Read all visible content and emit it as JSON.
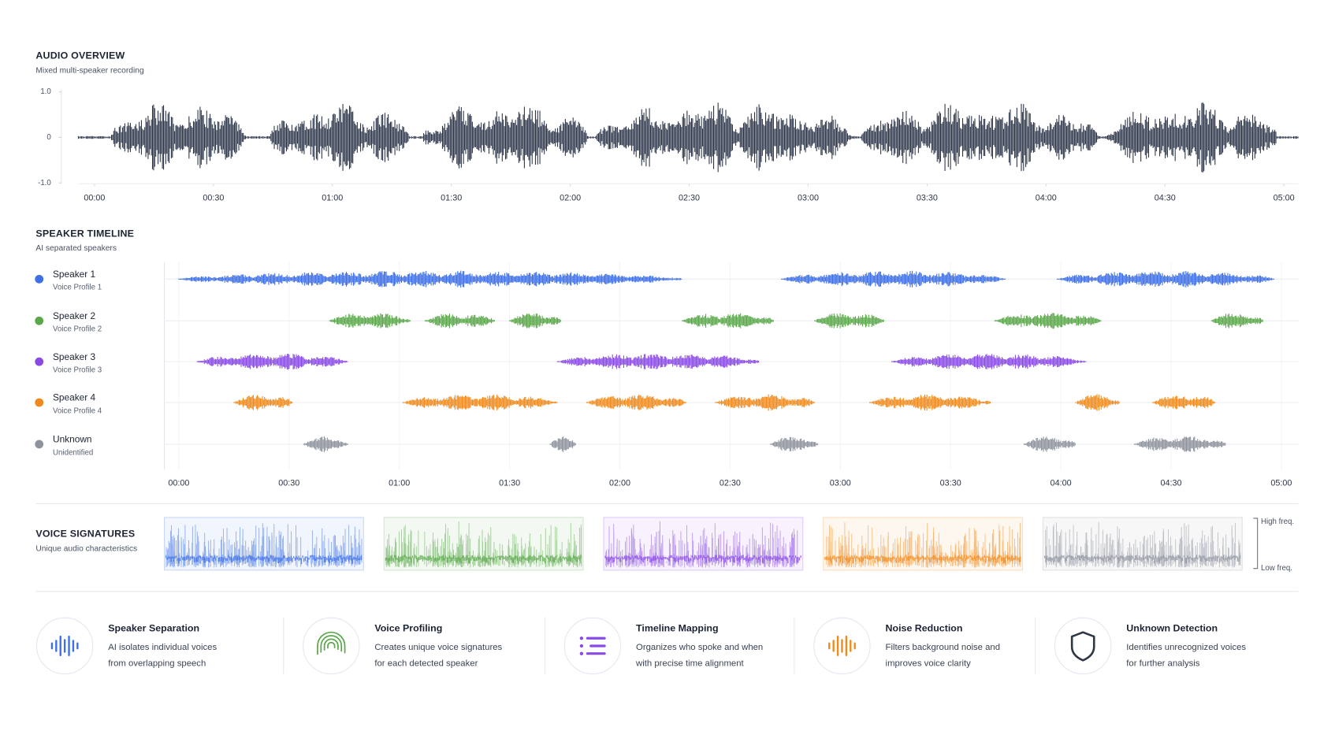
{
  "overview": {
    "title": "AUDIO OVERVIEW",
    "subtitle": "Mixed multi-speaker recording",
    "color": "#2b3448",
    "ylim": [
      -1,
      1
    ],
    "yticks": [
      {
        "value": 1,
        "label": "1.0"
      },
      0,
      {
        "value": -1,
        "label": "-1.0"
      }
    ],
    "xlim": [
      0,
      300
    ],
    "xticks": [
      {
        "value": 0,
        "label": "00:00"
      },
      {
        "value": 30,
        "label": "00:30"
      },
      {
        "value": 60,
        "label": "01:00"
      },
      {
        "value": 90,
        "label": "01:30"
      },
      {
        "value": 120,
        "label": "02:00"
      },
      {
        "value": 150,
        "label": "02:30"
      },
      {
        "value": 180,
        "label": "03:00"
      },
      {
        "value": 210,
        "label": "03:30"
      },
      {
        "value": 240,
        "label": "04:00"
      },
      {
        "value": 270,
        "label": "04:30"
      },
      {
        "value": 300,
        "label": "05:00"
      }
    ]
  },
  "timeline": {
    "title": "SPEAKER TIMELINE",
    "subtitle": "AI separated speakers",
    "xlim": [
      0,
      300
    ],
    "xticks": [
      {
        "value": 0,
        "label": "00:00"
      },
      {
        "value": 30,
        "label": "00:30"
      },
      {
        "value": 60,
        "label": "01:00"
      },
      {
        "value": 90,
        "label": "01:30"
      },
      {
        "value": 120,
        "label": "02:00"
      },
      {
        "value": 150,
        "label": "02:30"
      },
      {
        "value": 180,
        "label": "03:00"
      },
      {
        "value": 210,
        "label": "03:30"
      },
      {
        "value": 240,
        "label": "04:00"
      },
      {
        "value": 270,
        "label": "04:30"
      },
      {
        "value": 300,
        "label": "05:00"
      }
    ],
    "speakers": [
      {
        "name": "Speaker 1",
        "profile": "Voice Profile 1",
        "color": "#3d6fe6",
        "segments": [
          [
            0,
            137
          ],
          [
            164,
            225
          ],
          [
            239,
            298
          ]
        ]
      },
      {
        "name": "Speaker 2",
        "profile": "Voice Profile 2",
        "color": "#5aa84a",
        "segments": [
          [
            41,
            63
          ],
          [
            67,
            86
          ],
          [
            90,
            104
          ],
          [
            137,
            162
          ],
          [
            173,
            192
          ],
          [
            222,
            251
          ],
          [
            281,
            295
          ]
        ]
      },
      {
        "name": "Speaker 3",
        "profile": "Voice Profile 3",
        "color": "#8a4ae6",
        "segments": [
          [
            5,
            46
          ],
          [
            103,
            158
          ],
          [
            194,
            247
          ]
        ]
      },
      {
        "name": "Speaker 4",
        "profile": "Voice Profile 4",
        "color": "#f08a1c",
        "segments": [
          [
            15,
            31
          ],
          [
            61,
            103
          ],
          [
            111,
            138
          ],
          [
            146,
            173
          ],
          [
            188,
            221
          ],
          [
            244,
            256
          ],
          [
            265,
            282
          ]
        ]
      },
      {
        "name": "Unknown",
        "profile": "Unidentified",
        "color": "#8e939d",
        "segments": [
          [
            34,
            46
          ],
          [
            101,
            108
          ],
          [
            161,
            174
          ],
          [
            230,
            244
          ],
          [
            260,
            285
          ]
        ]
      }
    ]
  },
  "signatures": {
    "title": "VOICE SIGNATURES",
    "subtitle": "Unique audio characteristics",
    "high": "High freq.",
    "low": "Low freq."
  },
  "features": [
    {
      "title": "Speaker Separation",
      "lines": [
        "AI isolates individual voices",
        "from overlapping speech"
      ]
    },
    {
      "title": "Voice Profiling",
      "lines": [
        "Creates unique voice signatures",
        "for each detected speaker"
      ]
    },
    {
      "title": "Timeline Mapping",
      "lines": [
        "Organizes who spoke and when",
        "with precise time alignment"
      ]
    },
    {
      "title": "Noise Reduction",
      "lines": [
        "Filters background noise and",
        "improves voice clarity"
      ]
    },
    {
      "title": "Unknown Detection",
      "lines": [
        "Identifies unrecognized voices",
        "for further analysis"
      ]
    }
  ]
}
